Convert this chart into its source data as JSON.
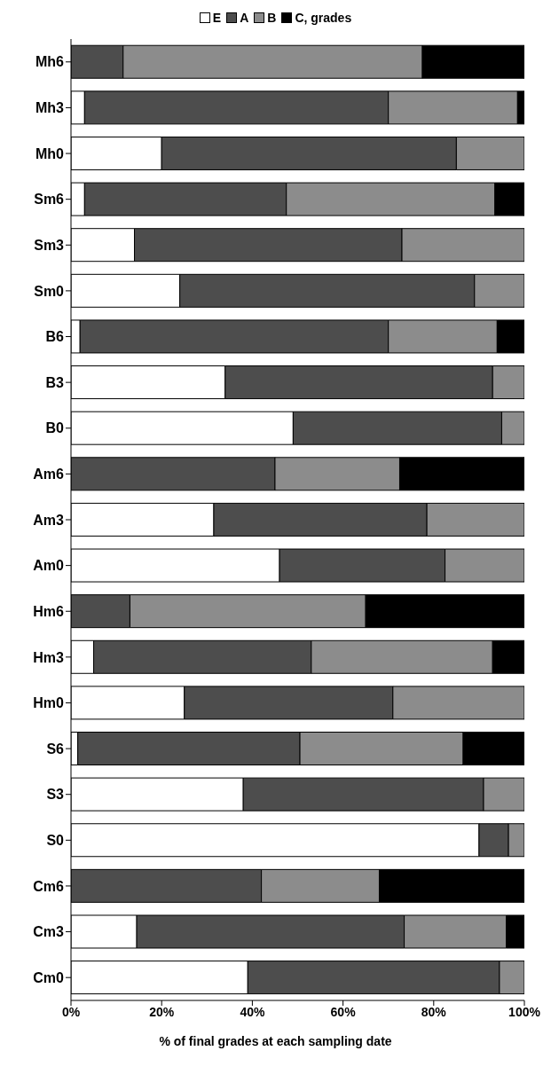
{
  "chart_data": {
    "type": "bar",
    "orientation": "horizontal",
    "stacked": true,
    "xlabel": "% of final grades at each sampling date",
    "categories": [
      "Mh6",
      "Mh3",
      "Mh0",
      "Sm6",
      "Sm3",
      "Sm0",
      "B6",
      "B3",
      "B0",
      "Am6",
      "Am3",
      "Am0",
      "Hm6",
      "Hm3",
      "Hm0",
      "S6",
      "S3",
      "S0",
      "Cm6",
      "Cm3",
      "Cm0"
    ],
    "series": [
      {
        "name": "E",
        "color": "#ffffff",
        "values": [
          0,
          3,
          20,
          3,
          14,
          24,
          2,
          34,
          49,
          0,
          31.5,
          46,
          0,
          5,
          25,
          1.5,
          38,
          90,
          0,
          14.5,
          39
        ]
      },
      {
        "name": "A",
        "color": "#4d4d4d",
        "values": [
          11.5,
          67,
          65,
          44.5,
          59,
          65,
          68,
          59,
          46,
          45,
          47,
          36.5,
          13,
          48,
          46,
          49,
          53,
          6.5,
          42,
          59,
          55.5
        ]
      },
      {
        "name": "B",
        "color": "#8c8c8c",
        "values": [
          66,
          28.5,
          15,
          46,
          27,
          11,
          24,
          7,
          5,
          27.5,
          21.5,
          17.5,
          52,
          40,
          29,
          36,
          9,
          3.5,
          26,
          22.5,
          5.5
        ]
      },
      {
        "name": "C, grades",
        "color": "#000000",
        "values": [
          22.5,
          1.5,
          0,
          6.5,
          0,
          0,
          6,
          0,
          0,
          27.5,
          0,
          0,
          35,
          7,
          0,
          13.5,
          0,
          0,
          32,
          4,
          0
        ]
      }
    ],
    "xlim": [
      0,
      100
    ],
    "xticks": [
      {
        "value": 0,
        "label": "0%"
      },
      {
        "value": 20,
        "label": "20%"
      },
      {
        "value": 40,
        "label": "40%"
      },
      {
        "value": 60,
        "label": "60%"
      },
      {
        "value": 80,
        "label": "80%"
      },
      {
        "value": 100,
        "label": "100%"
      }
    ],
    "grid": false,
    "legend": "top"
  }
}
